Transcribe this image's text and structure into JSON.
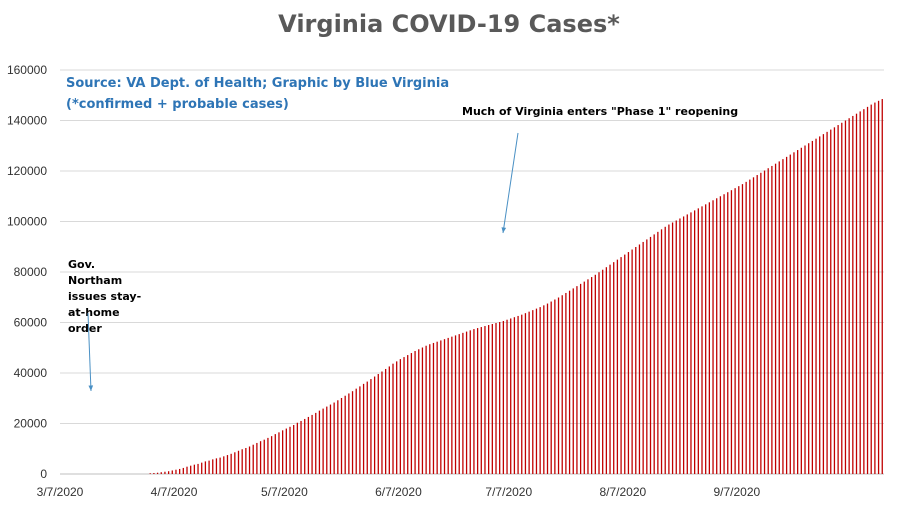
{
  "chart_data": {
    "type": "bar",
    "title": "Virginia COVID-19 Cases*",
    "subtitle_lines": [
      "Source: VA Dept. of Health; Graphic by Blue Virginia",
      "(*confirmed + probable cases)"
    ],
    "xlabel": "",
    "ylabel": "",
    "ylim": [
      0,
      160000
    ],
    "y_ticks": [
      "0",
      "20000",
      "40000",
      "60000",
      "80000",
      "100000",
      "120000",
      "140000",
      "160000"
    ],
    "x_ticks": [
      "3/7/2020",
      "4/7/2020",
      "5/7/2020",
      "6/7/2020",
      "7/7/2020",
      "8/7/2020",
      "9/7/2020"
    ],
    "grid": true,
    "bar_color": "#c00000",
    "start_date": "3/7/2020",
    "series": [
      {
        "values": [
          0,
          0,
          0,
          0,
          0,
          0,
          0,
          0,
          0,
          0,
          0,
          0,
          0,
          0,
          0,
          0,
          0,
          0,
          0,
          0,
          0,
          0,
          0,
          0,
          300,
          400,
          500,
          700,
          900,
          1100,
          1400,
          1700,
          2000,
          2400,
          2900,
          3300,
          3700,
          4000,
          4500,
          5000,
          5300,
          5800,
          6200,
          6500,
          7000,
          7500,
          8000,
          8600,
          9200,
          9800,
          10300,
          10900,
          11600,
          12300,
          13000,
          13600,
          14300,
          15000,
          15800,
          16500,
          17300,
          18000,
          18700,
          19400,
          20300,
          21000,
          21800,
          22600,
          23400,
          24200,
          25100,
          25900,
          26700,
          27500,
          28300,
          29200,
          30100,
          31000,
          31900,
          32800,
          33800,
          34700,
          35700,
          36600,
          37600,
          38600,
          39600,
          40600,
          41600,
          42600,
          43700,
          44600,
          45500,
          46300,
          47100,
          47900,
          48700,
          49400,
          50100,
          50800,
          51400,
          51900,
          52400,
          52900,
          53400,
          53900,
          54400,
          54900,
          55400,
          55900,
          56400,
          56900,
          57400,
          57800,
          58200,
          58600,
          59000,
          59400,
          59800,
          60200,
          60600,
          61100,
          61600,
          62100,
          62600,
          63100,
          63700,
          64300,
          64900,
          65500,
          66100,
          66800,
          67500,
          68300,
          69100,
          69900,
          70800,
          71700,
          72600,
          73500,
          74400,
          75300,
          76200,
          77100,
          78000,
          78900,
          79900,
          80900,
          81900,
          82900,
          83900,
          84900,
          85900,
          86900,
          87900,
          88900,
          89900,
          90900,
          91900,
          92900,
          93900,
          94900,
          95900,
          96900,
          97900,
          98800,
          99600,
          100400,
          101200,
          102000,
          102800,
          103600,
          104400,
          105200,
          106000,
          106800,
          107600,
          108400,
          109200,
          110000,
          110800,
          111600,
          112400,
          113200,
          114000,
          114800,
          115700,
          116600,
          117500,
          118400,
          119300,
          120200,
          121100,
          122000,
          122900,
          123800,
          124700,
          125600,
          126500,
          127400,
          128300,
          129200,
          130100,
          131000,
          131900,
          132800,
          133700,
          134600,
          135500,
          136400,
          137300,
          138200,
          139100,
          140000,
          140900,
          141800,
          142700,
          143600,
          144500,
          145400,
          146300,
          147100,
          147800,
          148500
        ]
      }
    ],
    "annotations": [
      "Much of Virginia enters \"Phase 1\" reopening",
      "Gov. Northam issues stay-at-home order"
    ]
  }
}
